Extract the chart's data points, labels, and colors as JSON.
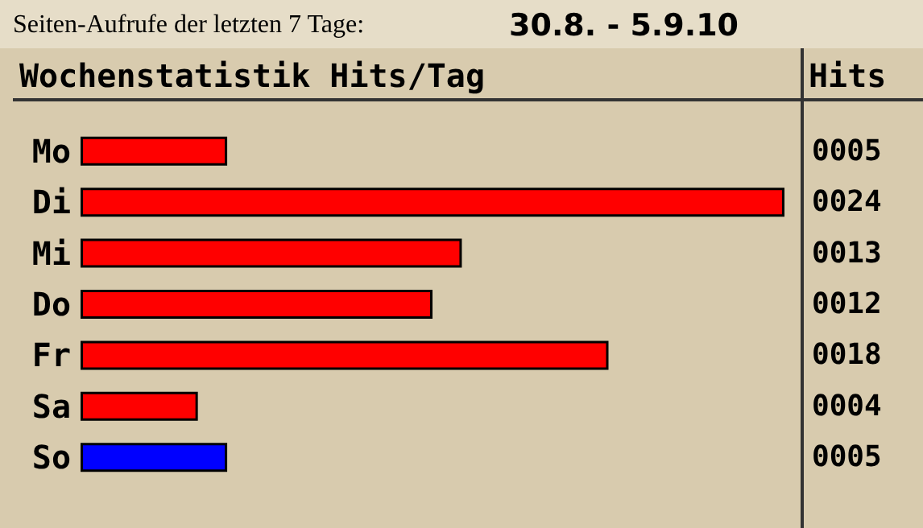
{
  "chart_data": {
    "type": "bar",
    "orientation": "horizontal",
    "title": "Wochenstatistik Hits/Tag",
    "subtitle": "Seiten-Aufrufe der letzten 7 Tage:",
    "annotations": [
      "30.8. - 5.9.10"
    ],
    "y2label": "Hits",
    "categories": [
      "Mo",
      "Di",
      "Mi",
      "Do",
      "Fr",
      "Sa",
      "So"
    ],
    "values": [
      5,
      24,
      13,
      12,
      18,
      4,
      5
    ],
    "colors": [
      "#ff0000",
      "#ff0000",
      "#ff0000",
      "#ff0000",
      "#ff0000",
      "#ff0000",
      "#0000ff"
    ],
    "value_labels": [
      "0005",
      "0024",
      "0013",
      "0012",
      "0018",
      "0004",
      "0005"
    ]
  }
}
